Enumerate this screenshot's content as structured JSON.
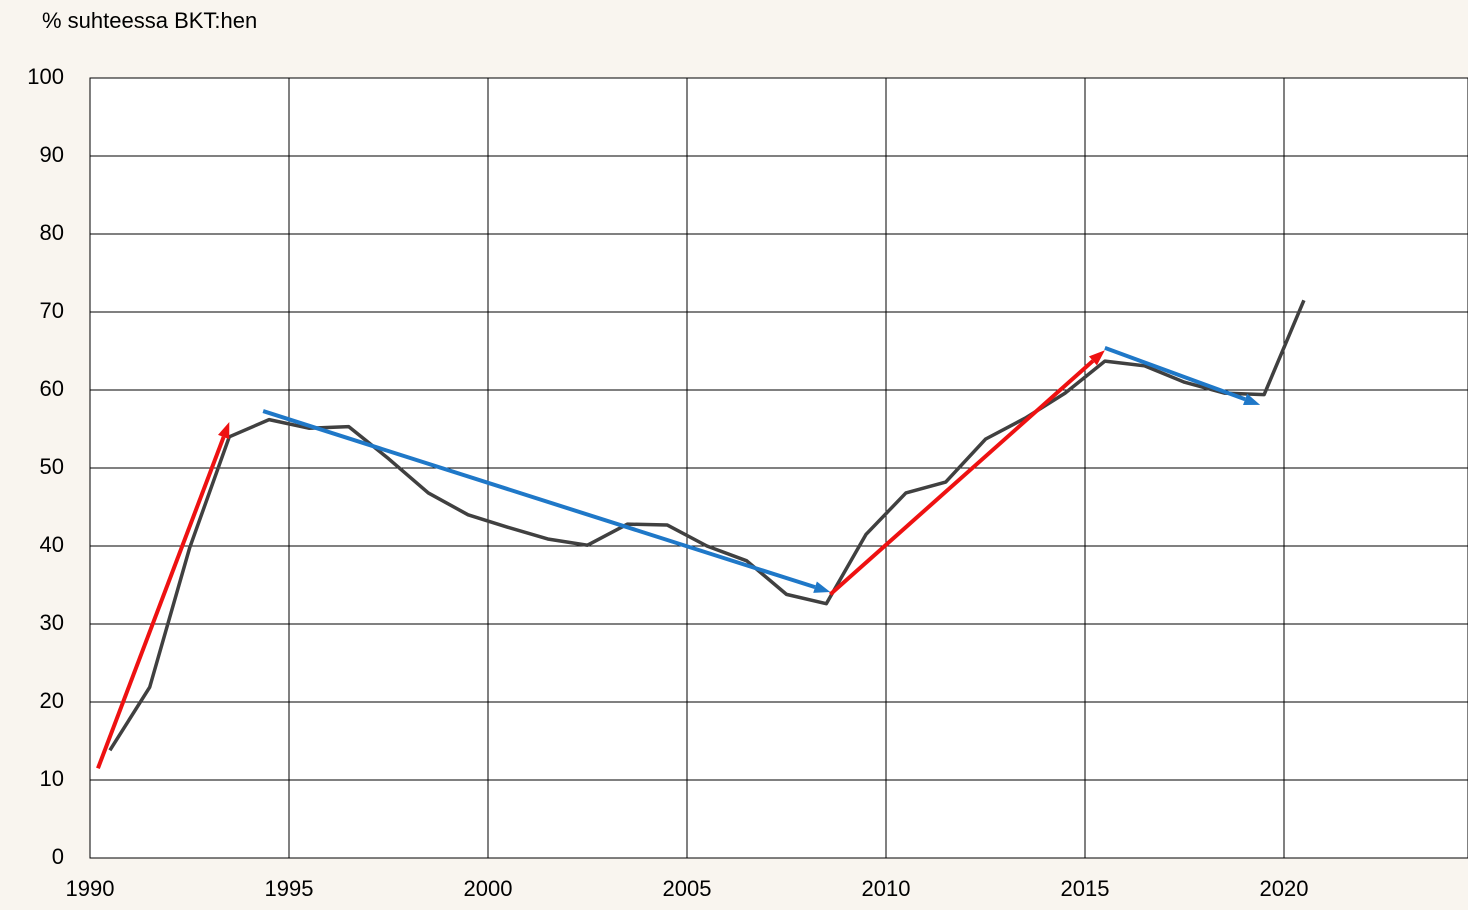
{
  "chart_data": {
    "type": "line",
    "title": "% suhteessa BKT:hen",
    "x": [
      1990.5,
      1991.5,
      1992.5,
      1993.5,
      1994.5,
      1995.5,
      1996.5,
      1997.5,
      1998.5,
      1999.5,
      2000.5,
      2001.5,
      2002.5,
      2003.5,
      2004.5,
      2005.5,
      2006.5,
      2007.5,
      2008.5,
      2009.5,
      2010.5,
      2011.5,
      2012.5,
      2013.5,
      2014.5,
      2015.5,
      2016.5,
      2017.5,
      2018.5,
      2019.5,
      2020.5
    ],
    "series": [
      {
        "color": "#404040",
        "values": [
          13.8,
          21.9,
          39.7,
          54.0,
          56.2,
          55.1,
          55.3,
          51.2,
          46.8,
          44.0,
          42.4,
          40.9,
          40.1,
          42.8,
          42.7,
          40.0,
          38.1,
          33.8,
          32.6,
          41.5,
          46.8,
          48.2,
          53.7,
          56.4,
          59.6,
          63.7,
          63.1,
          61.0,
          59.6,
          59.4,
          71.5
        ]
      }
    ],
    "arrows": [
      {
        "color": "#ee1111",
        "x": [
          1990.2,
          1993.5
        ],
        "y": [
          11.5,
          55.9
        ]
      },
      {
        "color": "#1f78c8",
        "x": [
          1994.35,
          2008.6
        ],
        "y": [
          57.3,
          34.1
        ]
      },
      {
        "color": "#ee1111",
        "x": [
          2008.6,
          2015.5
        ],
        "y": [
          33.8,
          65.1
        ]
      },
      {
        "color": "#1f78c8",
        "x": [
          2015.5,
          2019.4
        ],
        "y": [
          65.4,
          58.1
        ]
      }
    ],
    "xlim": [
      1990,
      2024.6
    ],
    "xticks": [
      1990,
      1995,
      2000,
      2005,
      2010,
      2015,
      2020
    ],
    "ylim": [
      0,
      100
    ],
    "yticks": [
      0,
      10,
      20,
      30,
      40,
      50,
      60,
      70,
      80,
      90,
      100
    ],
    "grid": true
  }
}
